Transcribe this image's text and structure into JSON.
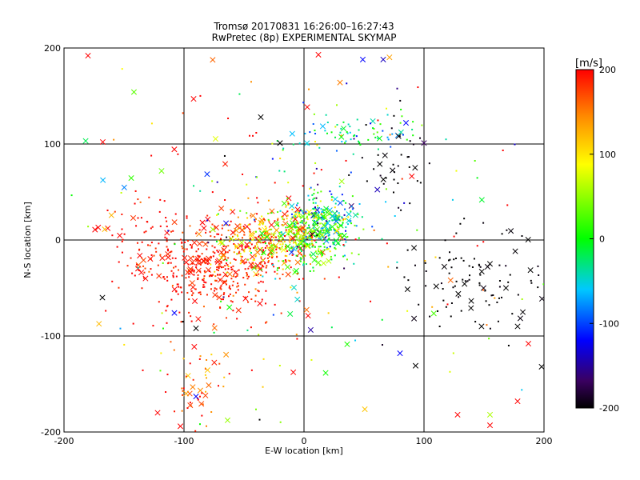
{
  "chart_data": {
    "type": "scatter",
    "title": "Tromsø 20170831 16:26:00–16:27:43",
    "subtitle": "RwPretec (8p) EXPERIMENTAL SKYMAP",
    "xlabel": "E-W location [km]",
    "ylabel": "N-S location [km]",
    "xlim": [
      -200,
      200
    ],
    "ylim": [
      -200,
      200
    ],
    "x_ticks": [
      -200,
      -100,
      0,
      100,
      200
    ],
    "y_ticks": [
      -200,
      -100,
      0,
      100,
      200
    ],
    "grid": true,
    "colorbar": {
      "label": "[m/s]",
      "range": [
        -200,
        200
      ],
      "ticks": [
        200,
        100,
        0,
        -100,
        -200
      ],
      "colormap": "rainbow (black → purple → blue → cyan → green → yellow → orange → red)"
    },
    "marker_types": [
      "dot",
      "x"
    ],
    "clusters": [
      {
        "x": -75,
        "y": -30,
        "sx": 28,
        "sy": 22,
        "n": 380,
        "v": 190,
        "vs": 15
      },
      {
        "x": -30,
        "y": 0,
        "sx": 22,
        "sy": 18,
        "n": 320,
        "v": 150,
        "vs": 60
      },
      {
        "x": 15,
        "y": 20,
        "sx": 15,
        "sy": 15,
        "n": 280,
        "v": -20,
        "vs": 60
      },
      {
        "x": 0,
        "y": 0,
        "sx": 18,
        "sy": 15,
        "n": 170,
        "v": 30,
        "vs": 40
      },
      {
        "x": 40,
        "y": 110,
        "sx": 25,
        "sy": 12,
        "n": 75,
        "v": -40,
        "vs": 40
      },
      {
        "x": 75,
        "y": 70,
        "sx": 15,
        "sy": 25,
        "n": 35,
        "v": -200,
        "vs": 5
      },
      {
        "x": 140,
        "y": -40,
        "sx": 35,
        "sy": 25,
        "n": 110,
        "v": -200,
        "vs": 5
      },
      {
        "x": -90,
        "y": -150,
        "sx": 12,
        "sy": 25,
        "n": 45,
        "v": 160,
        "vs": 40
      },
      {
        "x": -130,
        "y": 0,
        "sx": 25,
        "sy": 25,
        "n": 60,
        "v": 195,
        "vs": 8
      },
      {
        "x": 0,
        "y": 0,
        "sx": 95,
        "sy": 90,
        "n": 260,
        "v": 80,
        "vs": 150
      }
    ],
    "points": [
      {
        "x": -180,
        "y": 192,
        "v": 200,
        "m": "x"
      },
      {
        "x": 12,
        "y": 193,
        "v": 200,
        "m": "x"
      },
      {
        "x": 49,
        "y": 188,
        "v": -120,
        "m": "x"
      },
      {
        "x": 66,
        "y": 188,
        "v": -140,
        "m": "x"
      },
      {
        "x": -92,
        "y": 147,
        "v": 200,
        "m": "x"
      },
      {
        "x": -36,
        "y": 128,
        "v": -200,
        "m": "x"
      },
      {
        "x": -20,
        "y": 101,
        "v": -200,
        "m": "x"
      },
      {
        "x": 100,
        "y": 101,
        "v": -170,
        "m": "x"
      },
      {
        "x": -168,
        "y": -60,
        "v": -200,
        "m": "x"
      },
      {
        "x": -108,
        "y": -76,
        "v": -120,
        "m": "x"
      },
      {
        "x": -90,
        "y": -92,
        "v": -200,
        "m": "x"
      },
      {
        "x": 93,
        "y": -131,
        "v": -200,
        "m": "x"
      },
      {
        "x": 80,
        "y": -118,
        "v": -120,
        "m": "x"
      },
      {
        "x": -90,
        "y": -163,
        "v": -120,
        "m": "x"
      },
      {
        "x": 155,
        "y": -182,
        "v": 60,
        "m": "x"
      },
      {
        "x": 155,
        "y": -193,
        "v": 200,
        "m": "x"
      },
      {
        "x": 178,
        "y": -168,
        "v": 200,
        "m": "x"
      },
      {
        "x": 198,
        "y": -132,
        "v": -200,
        "m": "x"
      },
      {
        "x": 187,
        "y": -108,
        "v": 200,
        "m": "x"
      },
      {
        "x": 128,
        "y": -182,
        "v": 200,
        "m": "x"
      },
      {
        "x": -122,
        "y": -180,
        "v": 200,
        "m": "x"
      },
      {
        "x": -103,
        "y": -194,
        "v": 200,
        "m": "x"
      },
      {
        "x": 178,
        "y": -90,
        "v": -200,
        "m": "x"
      },
      {
        "x": 85,
        "y": 122,
        "v": -120,
        "m": "x"
      },
      {
        "x": 30,
        "y": 164,
        "v": 150,
        "m": "x"
      }
    ]
  }
}
